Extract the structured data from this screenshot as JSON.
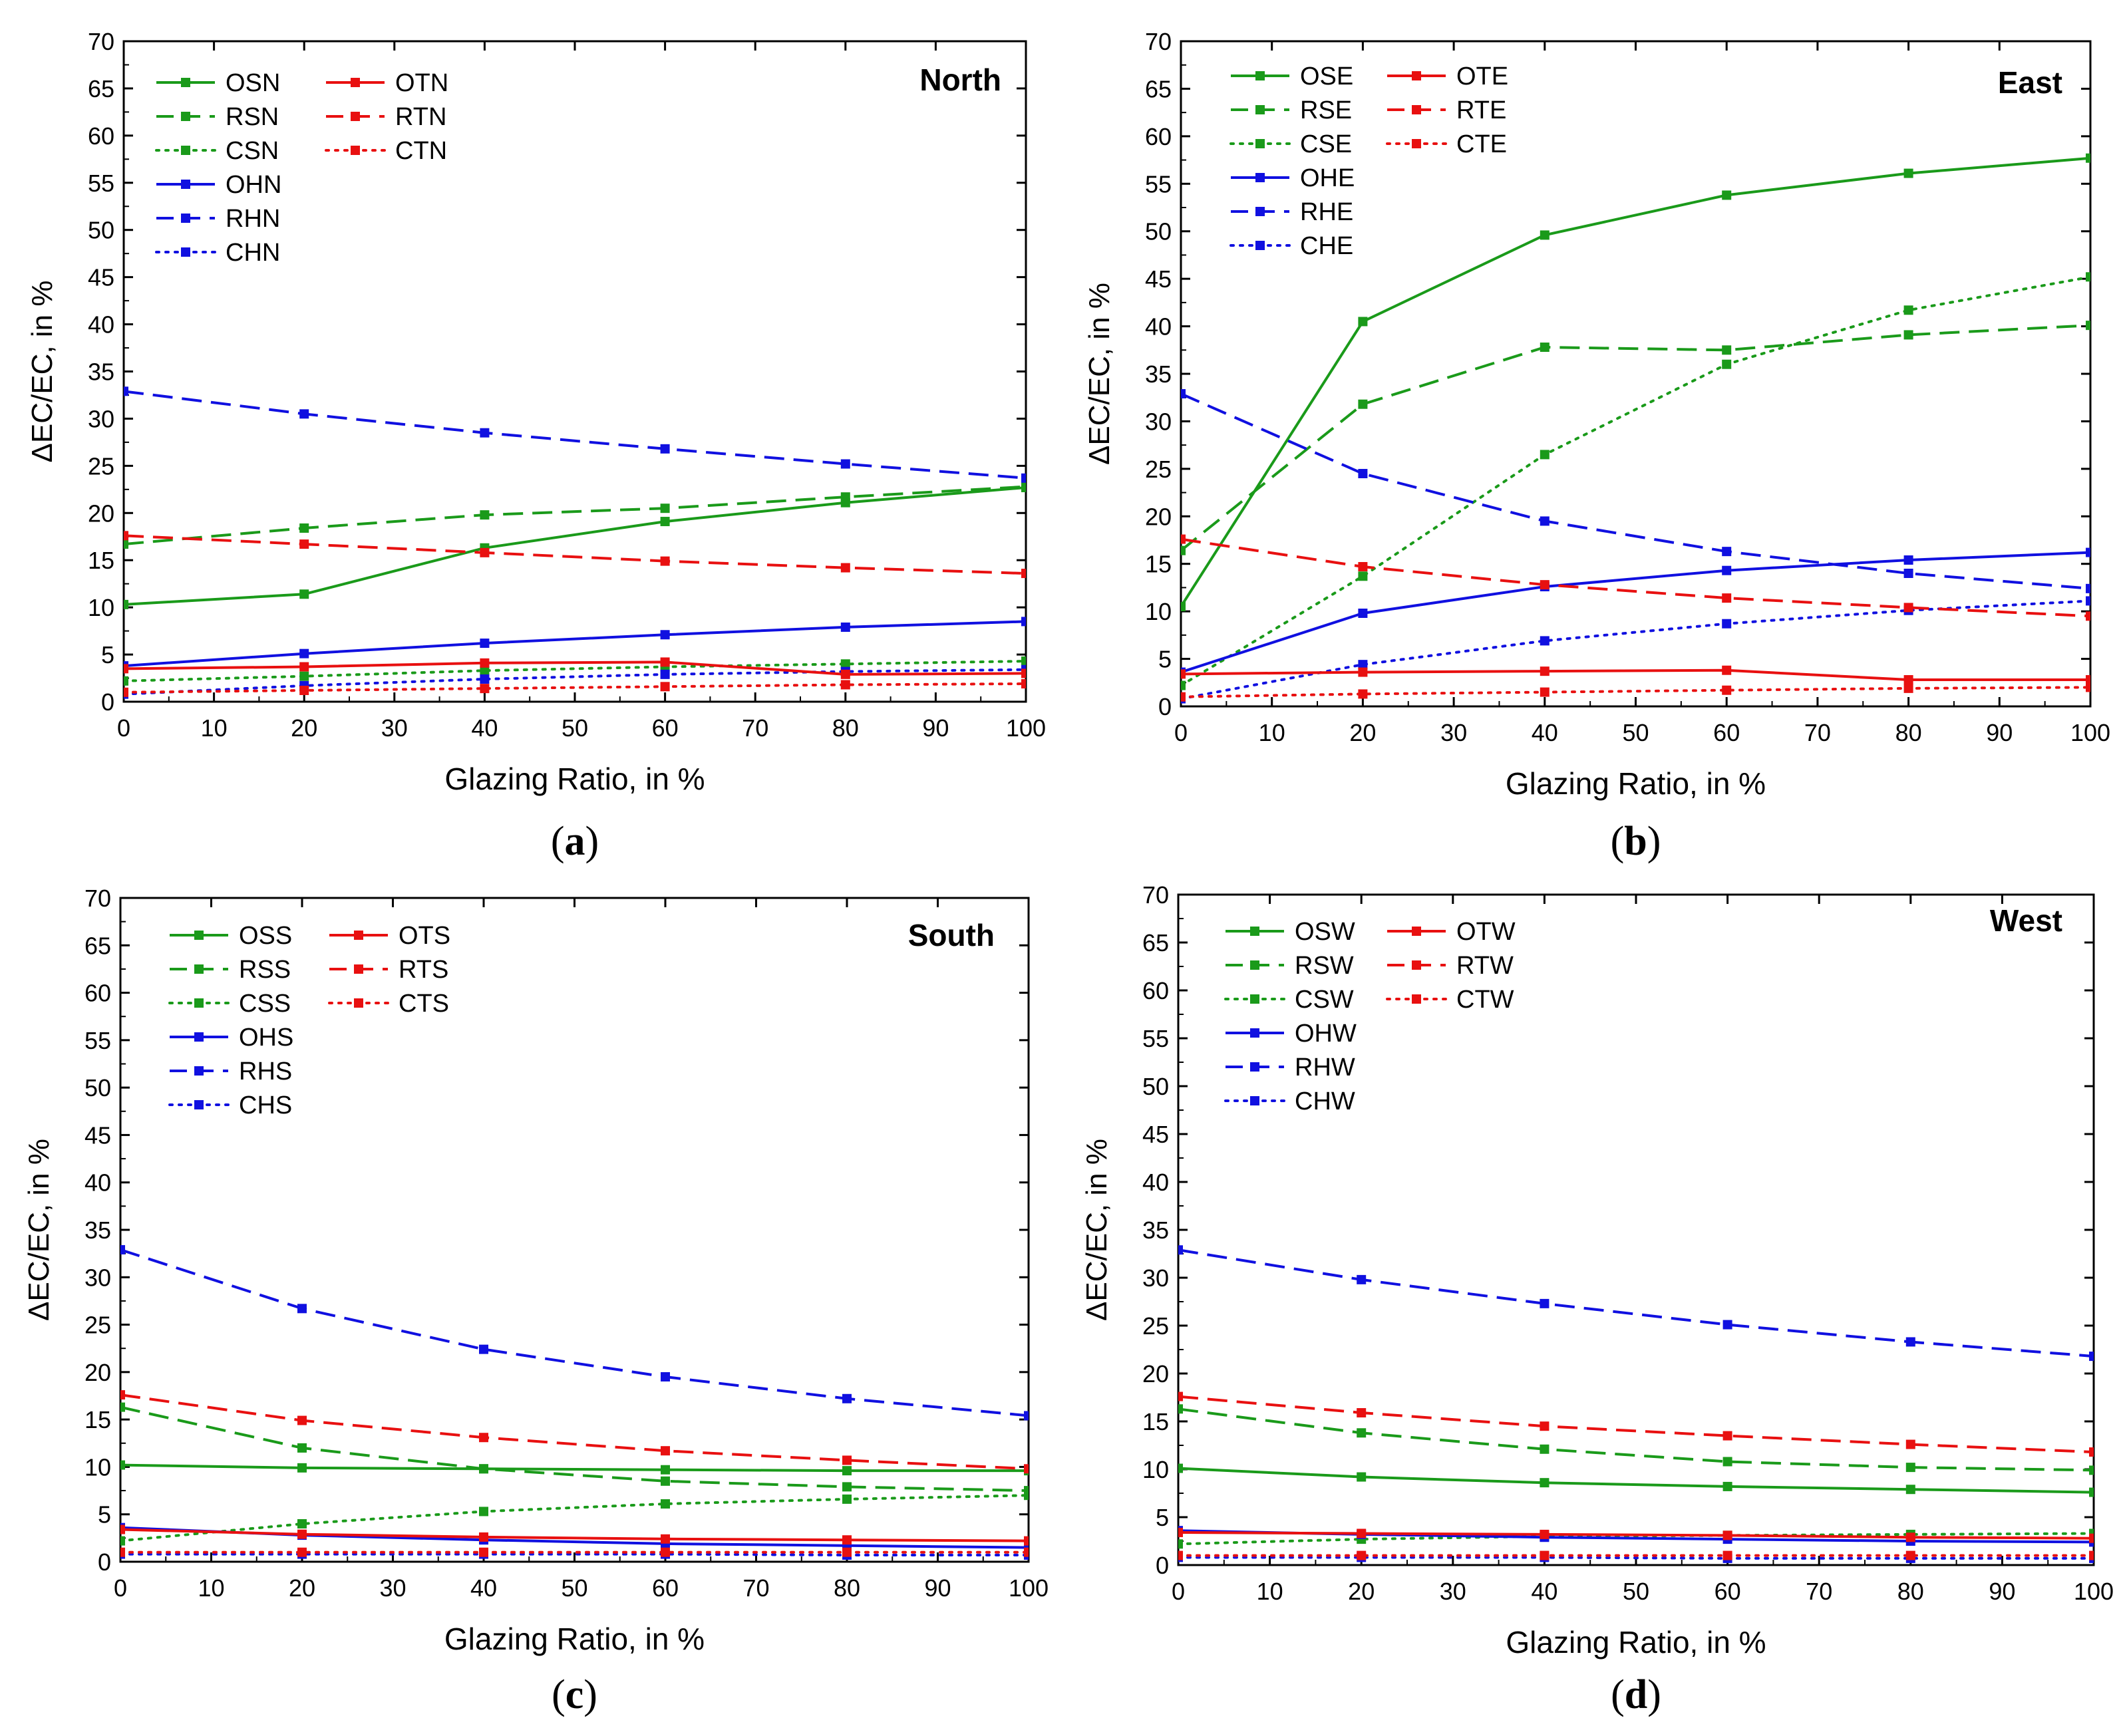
{
  "figure": {
    "charts": [
      {
        "id": "a",
        "caption_text": "a",
        "title": "North",
        "x_label": "Glazing Ratio, in %",
        "y_label": "ΔEC/EC, in %"
      },
      {
        "id": "b",
        "caption_text": "b",
        "title": "East",
        "x_label": "Glazing Ratio, in %",
        "y_label": "ΔEC/EC, in %"
      },
      {
        "id": "c",
        "caption_text": "c",
        "title": "South",
        "x_label": "Glazing Ratio, in %",
        "y_label": "ΔEC/EC, in %"
      },
      {
        "id": "d",
        "caption_text": "d",
        "title": "West",
        "x_label": "Glazing Ratio, in %",
        "y_label": "ΔEC/EC, in %"
      }
    ]
  },
  "chart_data": [
    {
      "type": "line",
      "title": "North",
      "xlabel": "Glazing Ratio, in %",
      "ylabel": "ΔEC/EC, in %",
      "xlim": [
        0,
        100
      ],
      "ylim": [
        0,
        70
      ],
      "xticks": [
        0,
        10,
        20,
        30,
        40,
        50,
        60,
        70,
        80,
        90,
        100
      ],
      "yticks": [
        0,
        5,
        10,
        15,
        20,
        25,
        30,
        35,
        40,
        45,
        50,
        55,
        60,
        65,
        70
      ],
      "x": [
        0,
        20,
        40,
        60,
        80,
        100
      ],
      "legend_position": "top-left",
      "series": [
        {
          "name": "OSN",
          "color": "#1a9a1a",
          "style": "solid",
          "values": [
            10.3,
            11.4,
            16.3,
            19.1,
            21.1,
            22.7
          ]
        },
        {
          "name": "RSN",
          "color": "#1a9a1a",
          "style": "dashed",
          "values": [
            16.7,
            18.4,
            19.8,
            20.5,
            21.7,
            22.8
          ]
        },
        {
          "name": "CSN",
          "color": "#1a9a1a",
          "style": "dotted",
          "values": [
            2.2,
            2.7,
            3.3,
            3.7,
            4.0,
            4.3
          ]
        },
        {
          "name": "OHN",
          "color": "#1010e0",
          "style": "solid",
          "values": [
            3.8,
            5.1,
            6.2,
            7.1,
            7.9,
            8.5
          ]
        },
        {
          "name": "RHN",
          "color": "#1010e0",
          "style": "dashed",
          "values": [
            32.9,
            30.5,
            28.5,
            26.8,
            25.2,
            23.7
          ]
        },
        {
          "name": "CHN",
          "color": "#1010e0",
          "style": "dotted",
          "values": [
            0.8,
            1.7,
            2.4,
            2.9,
            3.2,
            3.4
          ]
        },
        {
          "name": "OTN",
          "color": "#e81010",
          "style": "solid",
          "values": [
            3.5,
            3.7,
            4.1,
            4.2,
            2.9,
            3.0
          ]
        },
        {
          "name": "RTN",
          "color": "#e81010",
          "style": "dashed",
          "values": [
            17.6,
            16.7,
            15.8,
            14.9,
            14.2,
            13.6
          ]
        },
        {
          "name": "CTN",
          "color": "#e81010",
          "style": "dotted",
          "values": [
            1.0,
            1.2,
            1.4,
            1.6,
            1.8,
            1.9
          ]
        }
      ]
    },
    {
      "type": "line",
      "title": "East",
      "xlabel": "Glazing Ratio, in %",
      "ylabel": "ΔEC/EC, in %",
      "xlim": [
        0,
        100
      ],
      "ylim": [
        0,
        70
      ],
      "xticks": [
        0,
        10,
        20,
        30,
        40,
        50,
        60,
        70,
        80,
        90,
        100
      ],
      "yticks": [
        0,
        5,
        10,
        15,
        20,
        25,
        30,
        35,
        40,
        45,
        50,
        55,
        60,
        65,
        70
      ],
      "x": [
        0,
        20,
        40,
        60,
        80,
        100
      ],
      "legend_position": "top-left",
      "series": [
        {
          "name": "OSE",
          "color": "#1a9a1a",
          "style": "solid",
          "values": [
            10.5,
            40.5,
            49.6,
            53.8,
            56.1,
            57.7
          ]
        },
        {
          "name": "RSE",
          "color": "#1a9a1a",
          "style": "dashed",
          "values": [
            16.4,
            31.8,
            37.8,
            37.5,
            39.1,
            40.1
          ]
        },
        {
          "name": "CSE",
          "color": "#1a9a1a",
          "style": "dotted",
          "values": [
            2.2,
            13.7,
            26.5,
            36.0,
            41.7,
            45.2
          ]
        },
        {
          "name": "OHE",
          "color": "#1010e0",
          "style": "solid",
          "values": [
            3.6,
            9.8,
            12.6,
            14.3,
            15.4,
            16.2
          ]
        },
        {
          "name": "RHE",
          "color": "#1010e0",
          "style": "dashed",
          "values": [
            32.9,
            24.5,
            19.5,
            16.3,
            14.0,
            12.4
          ]
        },
        {
          "name": "CHE",
          "color": "#1010e0",
          "style": "dotted",
          "values": [
            0.8,
            4.4,
            6.9,
            8.7,
            10.1,
            11.1
          ]
        },
        {
          "name": "OTE",
          "color": "#e81010",
          "style": "solid",
          "values": [
            3.4,
            3.6,
            3.7,
            3.8,
            2.8,
            2.8
          ]
        },
        {
          "name": "RTE",
          "color": "#e81010",
          "style": "dashed",
          "values": [
            17.6,
            14.7,
            12.8,
            11.4,
            10.4,
            9.5
          ]
        },
        {
          "name": "CTE",
          "color": "#e81010",
          "style": "dotted",
          "values": [
            1.0,
            1.3,
            1.5,
            1.7,
            1.9,
            2.0
          ]
        }
      ]
    },
    {
      "type": "line",
      "title": "South",
      "xlabel": "Glazing Ratio, in %",
      "ylabel": "ΔEC/EC, in %",
      "xlim": [
        0,
        100
      ],
      "ylim": [
        0,
        70
      ],
      "xticks": [
        0,
        10,
        20,
        30,
        40,
        50,
        60,
        70,
        80,
        90,
        100
      ],
      "yticks": [
        0,
        5,
        10,
        15,
        20,
        25,
        30,
        35,
        40,
        45,
        50,
        55,
        60,
        65,
        70
      ],
      "x": [
        0,
        20,
        40,
        60,
        80,
        100
      ],
      "legend_position": "top-left",
      "series": [
        {
          "name": "OSS",
          "color": "#1a9a1a",
          "style": "solid",
          "values": [
            10.2,
            9.9,
            9.8,
            9.7,
            9.6,
            9.6
          ]
        },
        {
          "name": "RSS",
          "color": "#1a9a1a",
          "style": "dashed",
          "values": [
            16.3,
            12.0,
            9.8,
            8.5,
            7.9,
            7.5
          ]
        },
        {
          "name": "CSS",
          "color": "#1a9a1a",
          "style": "dotted",
          "values": [
            2.2,
            4.0,
            5.3,
            6.1,
            6.6,
            7.0
          ]
        },
        {
          "name": "OHS",
          "color": "#1010e0",
          "style": "solid",
          "values": [
            3.6,
            2.8,
            2.3,
            1.9,
            1.7,
            1.5
          ]
        },
        {
          "name": "RHS",
          "color": "#1010e0",
          "style": "dashed",
          "values": [
            32.9,
            26.7,
            22.4,
            19.5,
            17.2,
            15.4
          ]
        },
        {
          "name": "CHS",
          "color": "#1010e0",
          "style": "dotted",
          "values": [
            0.8,
            0.8,
            0.8,
            0.8,
            0.7,
            0.7
          ]
        },
        {
          "name": "OTS",
          "color": "#e81010",
          "style": "solid",
          "values": [
            3.4,
            2.9,
            2.6,
            2.4,
            2.3,
            2.2
          ]
        },
        {
          "name": "RTS",
          "color": "#e81010",
          "style": "dashed",
          "values": [
            17.6,
            14.9,
            13.1,
            11.7,
            10.7,
            9.8
          ]
        },
        {
          "name": "CTS",
          "color": "#e81010",
          "style": "dotted",
          "values": [
            1.0,
            1.0,
            1.0,
            1.0,
            1.0,
            1.0
          ]
        }
      ]
    },
    {
      "type": "line",
      "title": "West",
      "xlabel": "Glazing Ratio, in %",
      "ylabel": "ΔEC/EC, in %",
      "xlim": [
        0,
        100
      ],
      "ylim": [
        0,
        70
      ],
      "xticks": [
        0,
        10,
        20,
        30,
        40,
        50,
        60,
        70,
        80,
        90,
        100
      ],
      "yticks": [
        0,
        5,
        10,
        15,
        20,
        25,
        30,
        35,
        40,
        45,
        50,
        55,
        60,
        65,
        70
      ],
      "x": [
        0,
        20,
        40,
        60,
        80,
        100
      ],
      "legend_position": "top-left",
      "series": [
        {
          "name": "OSW",
          "color": "#1a9a1a",
          "style": "solid",
          "values": [
            10.1,
            9.2,
            8.6,
            8.2,
            7.9,
            7.6
          ]
        },
        {
          "name": "RSW",
          "color": "#1a9a1a",
          "style": "dashed",
          "values": [
            16.3,
            13.8,
            12.1,
            10.8,
            10.2,
            9.9
          ]
        },
        {
          "name": "CSW",
          "color": "#1a9a1a",
          "style": "dotted",
          "values": [
            2.2,
            2.7,
            3.0,
            3.1,
            3.2,
            3.3
          ]
        },
        {
          "name": "OHW",
          "color": "#1010e0",
          "style": "solid",
          "values": [
            3.6,
            3.2,
            2.9,
            2.7,
            2.5,
            2.4
          ]
        },
        {
          "name": "RHW",
          "color": "#1010e0",
          "style": "dashed",
          "values": [
            32.9,
            29.8,
            27.3,
            25.1,
            23.3,
            21.8
          ]
        },
        {
          "name": "CHW",
          "color": "#1010e0",
          "style": "dotted",
          "values": [
            0.8,
            0.8,
            0.8,
            0.7,
            0.7,
            0.7
          ]
        },
        {
          "name": "OTW",
          "color": "#e81010",
          "style": "solid",
          "values": [
            3.4,
            3.3,
            3.2,
            3.1,
            2.9,
            2.8
          ]
        },
        {
          "name": "RTW",
          "color": "#e81010",
          "style": "dashed",
          "values": [
            17.6,
            15.9,
            14.5,
            13.5,
            12.6,
            11.8
          ]
        },
        {
          "name": "CTW",
          "color": "#e81010",
          "style": "dotted",
          "values": [
            1.0,
            1.0,
            1.0,
            1.0,
            1.0,
            1.0
          ]
        }
      ]
    }
  ]
}
